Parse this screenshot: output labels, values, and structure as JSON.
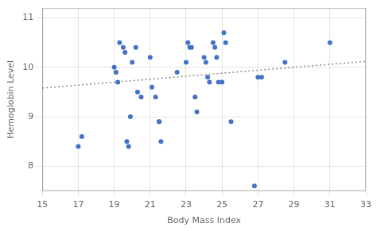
{
  "chart_data": {
    "type": "scatter",
    "xlabel": "Body Mass Index",
    "ylabel": "Hemoglobin Level",
    "series": [
      {
        "type": "scatter",
        "color": "#4472C4",
        "marker": "circle",
        "x": [
          17.0,
          17.2,
          19.0,
          19.1,
          19.2,
          19.3,
          19.5,
          19.6,
          19.7,
          19.8,
          19.9,
          20.0,
          20.2,
          20.3,
          20.5,
          21.0,
          21.1,
          21.3,
          21.5,
          21.5,
          21.6,
          22.5,
          23.0,
          23.1,
          23.2,
          23.3,
          23.5,
          23.6,
          24.0,
          24.1,
          24.2,
          24.3,
          24.5,
          24.6,
          24.7,
          24.8,
          25.0,
          25.1,
          25.2,
          25.5,
          26.8,
          27.0,
          27.2,
          28.5,
          31.0
        ],
        "values": [
          8.4,
          8.6,
          10.0,
          9.9,
          9.7,
          10.5,
          10.4,
          10.3,
          8.5,
          8.4,
          9.0,
          10.1,
          10.4,
          9.5,
          9.4,
          10.2,
          9.6,
          9.4,
          8.9,
          8.9,
          8.5,
          9.9,
          10.1,
          10.5,
          10.4,
          10.4,
          9.4,
          9.1,
          10.2,
          10.1,
          9.8,
          9.7,
          10.5,
          10.4,
          10.2,
          9.7,
          9.7,
          10.7,
          10.5,
          8.9,
          7.6,
          9.8,
          9.8,
          10.1,
          10.5
        ]
      },
      {
        "type": "line",
        "color": "#8C8C8C",
        "line_style": "dotted",
        "x": [
          15.0,
          33.0
        ],
        "values": [
          9.58,
          10.12
        ]
      }
    ],
    "xlim": [
      15,
      33
    ],
    "ylim": [
      7.5,
      11.2
    ],
    "xticks": [
      15,
      17,
      19,
      21,
      23,
      25,
      27,
      29,
      31,
      33
    ],
    "yticks": [
      8,
      9,
      10,
      11
    ],
    "grid": true
  }
}
